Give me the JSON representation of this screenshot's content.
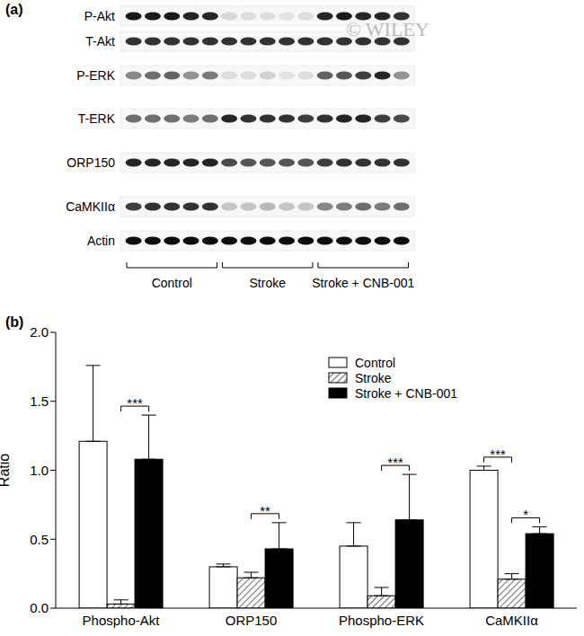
{
  "panel_a": {
    "label": "(a)",
    "watermark": "© WILEY",
    "rows": [
      {
        "label": "P-Akt",
        "intensity": [
          0.9,
          0.9,
          0.9,
          0.85,
          0.85,
          0.12,
          0.1,
          0.1,
          0.08,
          0.1,
          0.85,
          0.9,
          0.85,
          0.85,
          0.8
        ]
      },
      {
        "label": "T-Akt",
        "intensity": [
          0.8,
          0.8,
          0.8,
          0.8,
          0.8,
          0.8,
          0.8,
          0.8,
          0.8,
          0.8,
          0.8,
          0.8,
          0.8,
          0.8,
          0.8
        ]
      },
      {
        "label": "P-ERK",
        "intensity": [
          0.45,
          0.55,
          0.6,
          0.4,
          0.5,
          0.1,
          0.1,
          0.15,
          0.08,
          0.1,
          0.6,
          0.65,
          0.75,
          0.85,
          0.4
        ]
      },
      {
        "label": "T-ERK",
        "intensity": [
          0.55,
          0.55,
          0.55,
          0.5,
          0.55,
          0.85,
          0.8,
          0.8,
          0.8,
          0.75,
          0.8,
          0.85,
          0.85,
          0.75,
          0.7
        ]
      },
      {
        "label": "ORP150",
        "intensity": [
          0.85,
          0.85,
          0.85,
          0.85,
          0.85,
          0.7,
          0.65,
          0.65,
          0.65,
          0.65,
          0.75,
          0.8,
          0.8,
          0.8,
          0.8
        ]
      },
      {
        "label": "CaMKIIα",
        "intensity": [
          0.75,
          0.8,
          0.8,
          0.8,
          0.8,
          0.2,
          0.2,
          0.25,
          0.2,
          0.2,
          0.45,
          0.5,
          0.55,
          0.5,
          0.55
        ]
      },
      {
        "label": "Actin",
        "intensity": [
          0.95,
          0.95,
          0.95,
          0.95,
          0.95,
          0.95,
          0.95,
          0.95,
          0.95,
          0.95,
          0.95,
          0.95,
          0.95,
          0.95,
          0.95
        ]
      }
    ],
    "groups": [
      "Control",
      "Stroke",
      "Stroke + CNB-001"
    ]
  },
  "chart_data": {
    "type": "bar",
    "panel_label": "(b)",
    "y_label": "Ratio",
    "categories": [
      "Phospho-Akt",
      "ORP150",
      "Phospho-ERK",
      "CaMKIIα"
    ],
    "series": [
      {
        "name": "Control",
        "color": "#ffffff",
        "values": [
          1.21,
          0.3,
          0.45,
          1.0
        ],
        "error": [
          0.55,
          0.02,
          0.17,
          0.03
        ]
      },
      {
        "name": "Stroke",
        "color": "#000000",
        "marker": "hatch",
        "values": [
          0.03,
          0.22,
          0.09,
          0.21
        ],
        "error": [
          0.03,
          0.04,
          0.06,
          0.04
        ]
      },
      {
        "name": "Stroke + CNB-001",
        "color": "#000000",
        "values": [
          1.08,
          0.43,
          0.64,
          0.54
        ],
        "error": [
          0.32,
          0.19,
          0.33,
          0.05
        ]
      }
    ],
    "ylim": [
      0,
      2
    ],
    "yticks": [
      {
        "value": 0,
        "label": "0.0"
      },
      {
        "value": 0.5,
        "label": "0.5"
      },
      {
        "value": 1,
        "label": "1.0"
      },
      {
        "value": 1.5,
        "label": "1.5"
      },
      {
        "value": 2,
        "label": "2.0"
      }
    ],
    "legend": "top right",
    "significance": [
      {
        "category": "Phospho-Akt",
        "from": "Stroke",
        "to": "Stroke + CNB-001",
        "label": "***"
      },
      {
        "category": "ORP150",
        "from": "Stroke",
        "to": "Stroke + CNB-001",
        "label": "**"
      },
      {
        "category": "Phospho-ERK",
        "from": "Stroke",
        "to": "Stroke + CNB-001",
        "label": "***"
      },
      {
        "category": "CaMKIIα",
        "from": "Control",
        "to": "Stroke",
        "label": "***"
      },
      {
        "category": "CaMKIIα",
        "from": "Stroke",
        "to": "Stroke + CNB-001",
        "label": "*"
      }
    ]
  }
}
